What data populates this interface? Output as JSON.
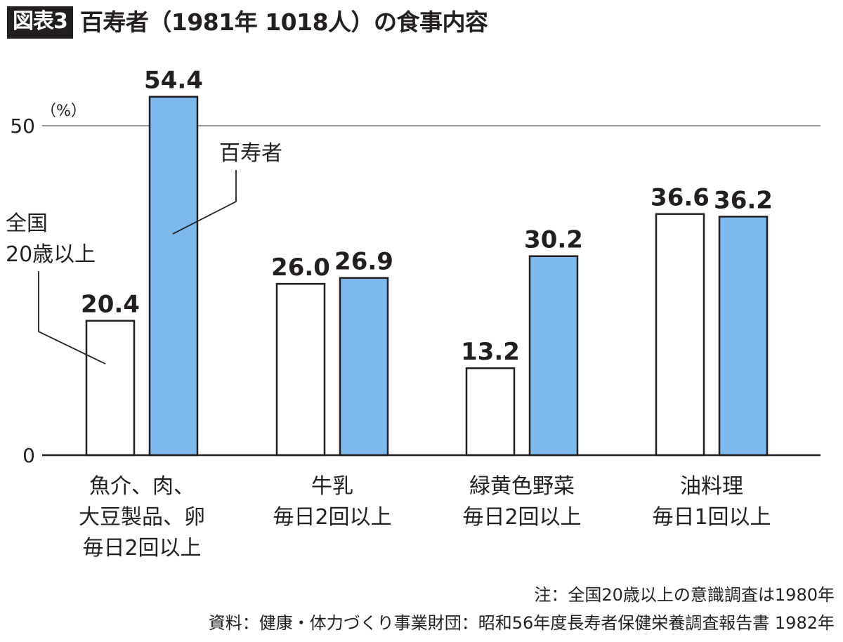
{
  "header": {
    "badge": "図表3",
    "title": "百寿者（1981年 1018人）の食事内容"
  },
  "chart_data": {
    "type": "bar",
    "title": "百寿者（1981年 1018人）の食事内容",
    "unit": "（%）",
    "ylim": [
      0,
      54.4
    ],
    "yticks": [
      0,
      50
    ],
    "grid": false,
    "legend": "annotations",
    "categories": [
      [
        "魚介、肉、",
        "大豆製品、卵",
        "毎日2回以上"
      ],
      [
        "牛乳",
        "毎日2回以上"
      ],
      [
        "緑黄色野菜",
        "毎日2回以上"
      ],
      [
        "油料理",
        "毎日1回以上"
      ]
    ],
    "series": [
      {
        "name": "全国20歳以上",
        "label_lines": [
          "全国",
          "20歳以上"
        ],
        "color": "#ffffff",
        "values": [
          20.4,
          26.0,
          13.2,
          36.6
        ],
        "value_labels": [
          "20.4",
          "26.0",
          "13.2",
          "36.6"
        ]
      },
      {
        "name": "百寿者",
        "label_lines": [
          "百寿者"
        ],
        "color": "#7db9ec",
        "values": [
          54.4,
          26.9,
          30.2,
          36.2
        ],
        "value_labels": [
          "54.4",
          "26.9",
          "30.2",
          "36.2"
        ]
      }
    ]
  },
  "colors": {
    "text": "#231f20",
    "axis": "#231f20",
    "reference_line": "#9a9a9a",
    "bar_white": "#ffffff",
    "bar_blue": "#7db9ec"
  },
  "footer": {
    "note": "注：全国20歳以上の意識調査は1980年",
    "source": "資料：健康・体力づくり事業財団：昭和56年度長寿者保健栄養調査報告書 1982年"
  }
}
